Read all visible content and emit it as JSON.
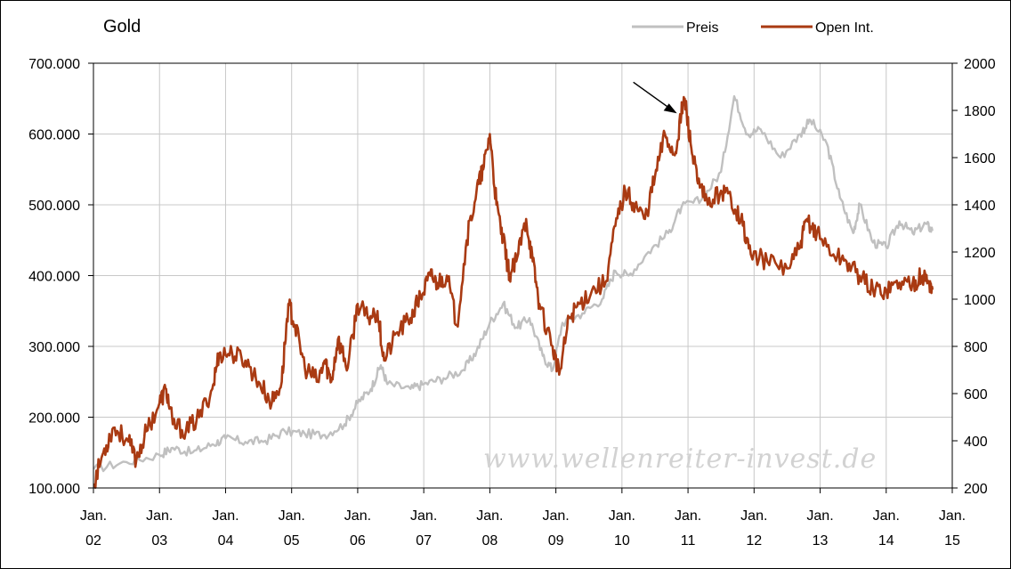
{
  "chart_data": {
    "type": "line",
    "title": "Gold",
    "x_unit": "year (fractional)",
    "x_range": [
      2002,
      2015
    ],
    "x_ticks": [
      {
        "value": 2002,
        "line1": "Jan.",
        "line2": "02"
      },
      {
        "value": 2003,
        "line1": "Jan.",
        "line2": "03"
      },
      {
        "value": 2004,
        "line1": "Jan.",
        "line2": "04"
      },
      {
        "value": 2005,
        "line1": "Jan.",
        "line2": "05"
      },
      {
        "value": 2006,
        "line1": "Jan.",
        "line2": "06"
      },
      {
        "value": 2007,
        "line1": "Jan.",
        "line2": "07"
      },
      {
        "value": 2008,
        "line1": "Jan.",
        "line2": "08"
      },
      {
        "value": 2009,
        "line1": "Jan.",
        "line2": "09"
      },
      {
        "value": 2010,
        "line1": "Jan.",
        "line2": "10"
      },
      {
        "value": 2011,
        "line1": "Jan.",
        "line2": "11"
      },
      {
        "value": 2012,
        "line1": "Jan.",
        "line2": "12"
      },
      {
        "value": 2013,
        "line1": "Jan.",
        "line2": "13"
      },
      {
        "value": 2014,
        "line1": "Jan.",
        "line2": "14"
      },
      {
        "value": 2015,
        "line1": "Jan.",
        "line2": "15"
      }
    ],
    "y_left": {
      "range": [
        100000,
        700000
      ],
      "ticks": [
        {
          "value": 100000,
          "label": "100.000"
        },
        {
          "value": 200000,
          "label": "200.000"
        },
        {
          "value": 300000,
          "label": "300.000"
        },
        {
          "value": 400000,
          "label": "400.000"
        },
        {
          "value": 500000,
          "label": "500.000"
        },
        {
          "value": 600000,
          "label": "600.000"
        },
        {
          "value": 700000,
          "label": "700.000"
        }
      ]
    },
    "y_right": {
      "range": [
        200,
        2000
      ],
      "ticks": [
        {
          "value": 200,
          "label": "200"
        },
        {
          "value": 400,
          "label": "400"
        },
        {
          "value": 600,
          "label": "600"
        },
        {
          "value": 800,
          "label": "800"
        },
        {
          "value": 1000,
          "label": "1000"
        },
        {
          "value": 1200,
          "label": "1200"
        },
        {
          "value": 1400,
          "label": "1400"
        },
        {
          "value": 1600,
          "label": "1600"
        },
        {
          "value": 1800,
          "label": "1800"
        },
        {
          "value": 2000,
          "label": "2000"
        }
      ]
    },
    "grid": true,
    "legend_position": "top-right",
    "watermark": "www.wellenreiter-invest.de",
    "annotation": {
      "type": "arrow",
      "points_to": {
        "x": 2010.9,
        "y": 1780,
        "axis": "right"
      }
    },
    "series": [
      {
        "name": "Preis",
        "color": "#c0c0c0",
        "axis": "right",
        "points": [
          [
            2002.0,
            280
          ],
          [
            2002.5,
            310
          ],
          [
            2003.0,
            340
          ],
          [
            2003.2,
            370
          ],
          [
            2003.5,
            350
          ],
          [
            2003.8,
            385
          ],
          [
            2004.0,
            410
          ],
          [
            2004.3,
            395
          ],
          [
            2004.6,
            400
          ],
          [
            2004.9,
            440
          ],
          [
            2005.2,
            430
          ],
          [
            2005.5,
            425
          ],
          [
            2005.8,
            470
          ],
          [
            2006.0,
            560
          ],
          [
            2006.2,
            620
          ],
          [
            2006.35,
            720
          ],
          [
            2006.45,
            640
          ],
          [
            2006.8,
            620
          ],
          [
            2007.0,
            640
          ],
          [
            2007.3,
            665
          ],
          [
            2007.6,
            700
          ],
          [
            2007.8,
            780
          ],
          [
            2008.0,
            900
          ],
          [
            2008.2,
            980
          ],
          [
            2008.4,
            880
          ],
          [
            2008.6,
            920
          ],
          [
            2008.8,
            760
          ],
          [
            2008.95,
            700
          ],
          [
            2009.1,
            900
          ],
          [
            2009.4,
            940
          ],
          [
            2009.7,
            1000
          ],
          [
            2009.9,
            1120
          ],
          [
            2010.1,
            1100
          ],
          [
            2010.4,
            1200
          ],
          [
            2010.7,
            1280
          ],
          [
            2010.9,
            1390
          ],
          [
            2011.2,
            1420
          ],
          [
            2011.5,
            1540
          ],
          [
            2011.7,
            1860
          ],
          [
            2011.9,
            1700
          ],
          [
            2012.1,
            1720
          ],
          [
            2012.4,
            1600
          ],
          [
            2012.7,
            1700
          ],
          [
            2012.85,
            1760
          ],
          [
            2013.1,
            1660
          ],
          [
            2013.3,
            1430
          ],
          [
            2013.5,
            1280
          ],
          [
            2013.6,
            1400
          ],
          [
            2013.8,
            1240
          ],
          [
            2014.0,
            1220
          ],
          [
            2014.2,
            1330
          ],
          [
            2014.4,
            1280
          ],
          [
            2014.6,
            1320
          ],
          [
            2014.7,
            1290
          ]
        ]
      },
      {
        "name": "Open Int.",
        "color": "#a93a12",
        "axis": "left",
        "points": [
          [
            2002.0,
            105000
          ],
          [
            2002.15,
            150000
          ],
          [
            2002.3,
            185000
          ],
          [
            2002.5,
            170000
          ],
          [
            2002.65,
            140000
          ],
          [
            2002.8,
            180000
          ],
          [
            2003.0,
            220000
          ],
          [
            2003.1,
            240000
          ],
          [
            2003.2,
            190000
          ],
          [
            2003.4,
            180000
          ],
          [
            2003.6,
            200000
          ],
          [
            2003.8,
            240000
          ],
          [
            2003.9,
            290000
          ],
          [
            2004.1,
            290000
          ],
          [
            2004.3,
            280000
          ],
          [
            2004.5,
            250000
          ],
          [
            2004.7,
            220000
          ],
          [
            2004.85,
            250000
          ],
          [
            2004.95,
            360000
          ],
          [
            2005.05,
            330000
          ],
          [
            2005.2,
            270000
          ],
          [
            2005.4,
            250000
          ],
          [
            2005.5,
            280000
          ],
          [
            2005.6,
            250000
          ],
          [
            2005.7,
            310000
          ],
          [
            2005.85,
            270000
          ],
          [
            2006.0,
            360000
          ],
          [
            2006.15,
            340000
          ],
          [
            2006.3,
            350000
          ],
          [
            2006.4,
            280000
          ],
          [
            2006.6,
            320000
          ],
          [
            2006.8,
            340000
          ],
          [
            2006.95,
            370000
          ],
          [
            2007.1,
            400000
          ],
          [
            2007.2,
            390000
          ],
          [
            2007.35,
            400000
          ],
          [
            2007.5,
            330000
          ],
          [
            2007.65,
            450000
          ],
          [
            2007.8,
            520000
          ],
          [
            2007.9,
            550000
          ],
          [
            2008.0,
            600000
          ],
          [
            2008.1,
            500000
          ],
          [
            2008.2,
            450000
          ],
          [
            2008.3,
            400000
          ],
          [
            2008.4,
            420000
          ],
          [
            2008.55,
            480000
          ],
          [
            2008.65,
            420000
          ],
          [
            2008.75,
            360000
          ],
          [
            2008.95,
            300000
          ],
          [
            2009.05,
            260000
          ],
          [
            2009.2,
            340000
          ],
          [
            2009.35,
            360000
          ],
          [
            2009.55,
            380000
          ],
          [
            2009.75,
            390000
          ],
          [
            2009.9,
            470000
          ],
          [
            2010.05,
            520000
          ],
          [
            2010.2,
            500000
          ],
          [
            2010.35,
            480000
          ],
          [
            2010.5,
            540000
          ],
          [
            2010.65,
            600000
          ],
          [
            2010.8,
            570000
          ],
          [
            2010.9,
            630000
          ],
          [
            2010.95,
            650000
          ],
          [
            2011.05,
            580000
          ],
          [
            2011.15,
            530000
          ],
          [
            2011.3,
            500000
          ],
          [
            2011.5,
            520000
          ],
          [
            2011.65,
            510000
          ],
          [
            2011.8,
            480000
          ],
          [
            2011.95,
            430000
          ],
          [
            2012.2,
            420000
          ],
          [
            2012.5,
            410000
          ],
          [
            2012.7,
            440000
          ],
          [
            2012.8,
            480000
          ],
          [
            2012.95,
            460000
          ],
          [
            2013.2,
            430000
          ],
          [
            2013.4,
            420000
          ],
          [
            2013.6,
            400000
          ],
          [
            2013.8,
            380000
          ],
          [
            2014.0,
            380000
          ],
          [
            2014.2,
            390000
          ],
          [
            2014.4,
            390000
          ],
          [
            2014.55,
            400000
          ],
          [
            2014.65,
            390000
          ],
          [
            2014.7,
            380000
          ]
        ]
      }
    ]
  }
}
